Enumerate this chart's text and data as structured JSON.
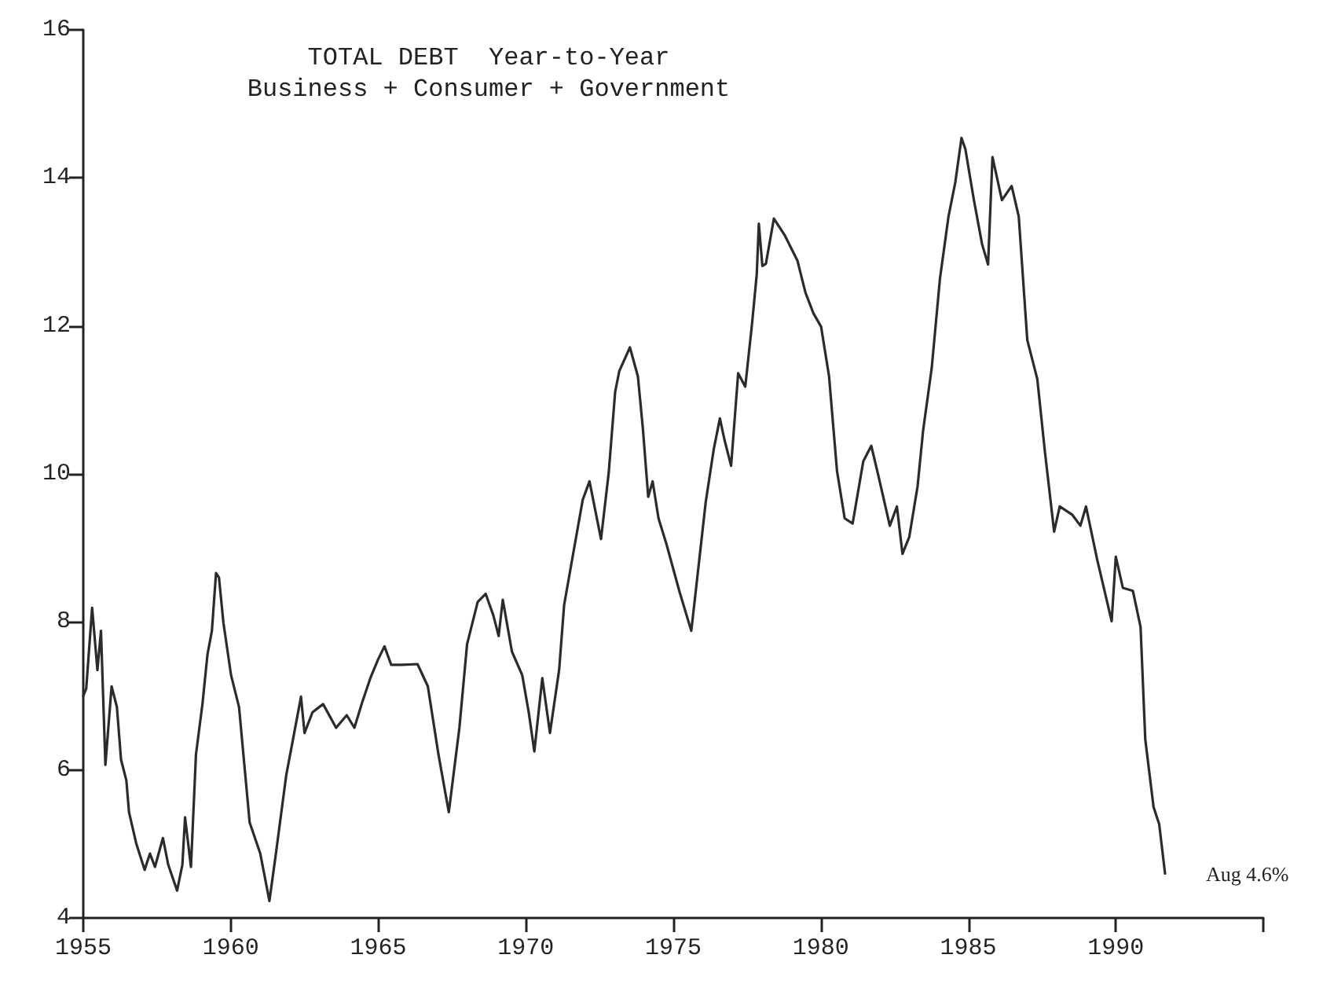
{
  "chart_data": {
    "type": "line",
    "title": "TOTAL DEBT  Year-to-Year",
    "subtitle": "Business + Consumer + Government",
    "x": [
      1955.0,
      1955.1,
      1955.3,
      1955.48,
      1955.6,
      1955.75,
      1955.96,
      1956.14,
      1956.28,
      1956.46,
      1956.55,
      1956.8,
      1957.08,
      1957.26,
      1957.43,
      1957.7,
      1957.88,
      1958.18,
      1958.36,
      1958.45,
      1958.65,
      1958.82,
      1959.04,
      1959.21,
      1959.36,
      1959.5,
      1959.6,
      1959.75,
      1960.01,
      1960.28,
      1960.64,
      1961.0,
      1961.31,
      1961.53,
      1961.88,
      1962.15,
      1962.38,
      1962.5,
      1962.77,
      1963.13,
      1963.57,
      1963.93,
      1964.19,
      1964.46,
      1964.73,
      1964.99,
      1965.21,
      1965.44,
      1965.8,
      1966.33,
      1966.68,
      1967.04,
      1967.39,
      1967.75,
      1968.01,
      1968.37,
      1968.64,
      1968.9,
      1969.08,
      1969.22,
      1969.53,
      1969.88,
      1970.1,
      1970.29,
      1970.56,
      1970.82,
      1971.13,
      1971.3,
      1971.57,
      1971.93,
      1972.16,
      1972.55,
      1972.81,
      1973.03,
      1973.17,
      1973.53,
      1973.8,
      1973.97,
      1974.15,
      1974.3,
      1974.5,
      1974.77,
      1975.21,
      1975.61,
      1975.78,
      1976.1,
      1976.37,
      1976.58,
      1976.73,
      1976.96,
      1977.2,
      1977.44,
      1977.67,
      1977.83,
      1977.9,
      1978.02,
      1978.14,
      1978.41,
      1978.77,
      1979.21,
      1979.48,
      1979.75,
      1980.01,
      1980.28,
      1980.55,
      1980.81,
      1981.08,
      1981.44,
      1981.71,
      1981.95,
      1982.34,
      1982.58,
      1982.77,
      1983.0,
      1983.28,
      1983.47,
      1983.76,
      1984.04,
      1984.33,
      1984.56,
      1984.77,
      1984.9,
      1985.19,
      1985.47,
      1985.67,
      1985.82,
      1986.14,
      1986.47,
      1986.71,
      1987.0,
      1987.34,
      1987.6,
      1987.91,
      1988.1,
      1988.52,
      1988.8,
      1988.99,
      1989.37,
      1989.86,
      1990.0,
      1990.24,
      1990.58,
      1990.84,
      1991.0,
      1991.28,
      1991.47,
      1991.67
    ],
    "values": [
      7.0,
      7.1,
      8.19,
      7.35,
      7.88,
      6.07,
      7.13,
      6.85,
      6.14,
      5.86,
      5.43,
      5.0,
      4.65,
      4.87,
      4.69,
      5.08,
      4.72,
      4.37,
      4.72,
      5.36,
      4.69,
      6.21,
      6.89,
      7.56,
      7.88,
      8.66,
      8.6,
      7.99,
      7.28,
      6.85,
      5.29,
      4.87,
      4.23,
      4.87,
      5.93,
      6.5,
      6.99,
      6.5,
      6.78,
      6.89,
      6.57,
      6.74,
      6.57,
      6.92,
      7.24,
      7.49,
      7.67,
      7.42,
      7.42,
      7.43,
      7.13,
      6.21,
      5.43,
      6.57,
      7.7,
      8.27,
      8.38,
      8.09,
      7.81,
      8.3,
      7.6,
      7.28,
      6.78,
      6.25,
      7.24,
      6.5,
      7.35,
      8.23,
      8.84,
      9.65,
      9.9,
      9.12,
      10.01,
      11.11,
      11.39,
      11.71,
      11.32,
      10.61,
      9.69,
      9.9,
      9.4,
      9.05,
      8.41,
      7.88,
      8.48,
      9.62,
      10.33,
      10.75,
      10.47,
      10.11,
      11.36,
      11.18,
      12.03,
      12.7,
      13.38,
      12.81,
      12.84,
      13.45,
      13.23,
      12.88,
      12.45,
      12.17,
      11.99,
      11.32,
      10.04,
      9.4,
      9.33,
      10.17,
      10.38,
      9.98,
      9.3,
      9.56,
      8.92,
      9.15,
      9.83,
      10.59,
      11.43,
      12.64,
      13.48,
      13.94,
      14.54,
      14.39,
      13.7,
      13.1,
      12.83,
      14.28,
      13.7,
      13.89,
      13.48,
      11.81,
      11.28,
      10.29,
      9.22,
      9.56,
      9.45,
      9.3,
      9.56,
      8.84,
      8.01,
      8.88,
      8.46,
      8.42,
      7.93,
      6.41,
      5.5,
      5.27,
      4.6
    ],
    "color": "#2b2b2b",
    "xlim": [
      1955,
      1995
    ],
    "xticks": [
      1955,
      1960,
      1965,
      1970,
      1975,
      1980,
      1985,
      1990,
      {
        "value": 1995,
        "label": null
      }
    ],
    "ylim": [
      4,
      16
    ],
    "yticks": [
      4,
      6,
      8,
      10,
      12,
      14,
      16
    ],
    "grid": false,
    "marker": "none",
    "line_style": "solid",
    "annotations": [
      {
        "text": "Aug 4.6%",
        "x": 1991.67,
        "y": 4.6
      }
    ]
  }
}
